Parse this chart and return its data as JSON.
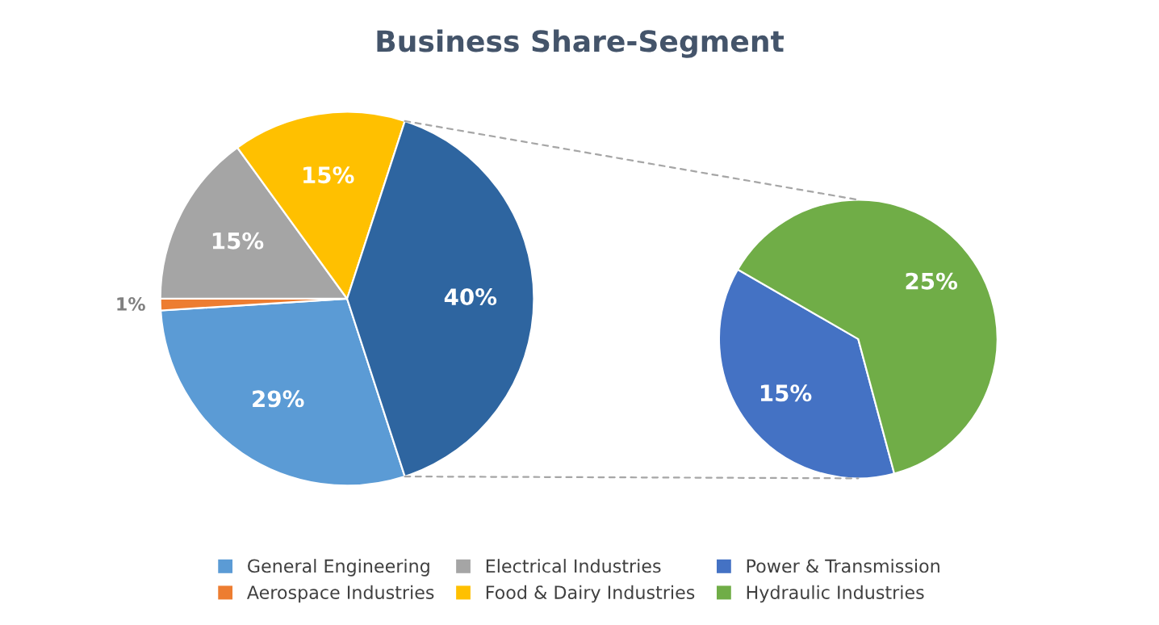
{
  "chart_data": [
    {
      "type": "pie",
      "title": "Business Share-Segment",
      "categories": [
        "General Engineering",
        "Aerospace Industries",
        "Electrical Industries",
        "Food & Dairy Industries",
        null
      ],
      "values": [
        29,
        1,
        15,
        15,
        40
      ],
      "value_labels": [
        "29%",
        "1%",
        "15%",
        "15%",
        "40%"
      ],
      "colors": [
        "#5b9bd5",
        "#ed7d31",
        "#a5a5a5",
        "#ffc000",
        "#2e65a0"
      ],
      "legend": "bottom"
    },
    {
      "type": "pie",
      "categories": [
        "Power & Transmission",
        "Hydraulic Industries"
      ],
      "values": [
        15,
        25
      ],
      "value_labels": [
        "15%",
        "25%"
      ],
      "colors": [
        "#4472c4",
        "#70ad47"
      ],
      "legend": "bottom"
    }
  ]
}
